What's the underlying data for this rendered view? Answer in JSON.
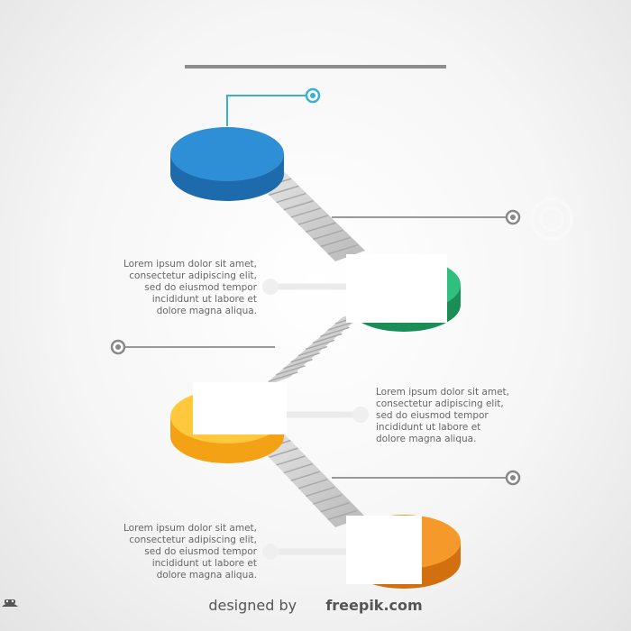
{
  "steps": [
    {
      "color_top": "#2f8fd6",
      "color_side": "#1d6aac",
      "body": ""
    },
    {
      "color_top": "#2fc07f",
      "color_side": "#1b8d56",
      "body": "Lorem ipsum dolor sit amet,\nconsectetur adipiscing elit,\nsed do eiusmod tempor\nincididunt ut labore et\ndolore magna aliqua."
    },
    {
      "color_top": "#ffc83d",
      "color_side": "#f3a215",
      "body": "Lorem ipsum dolor sit amet,\nconsectetur adipiscing elit,\nsed do eiusmod tempor\nincididunt ut labore et\ndolore magna aliqua."
    },
    {
      "color_top": "#f59a2a",
      "color_side": "#d2700f",
      "body": "Lorem ipsum dolor sit amet,\nconsectetur adipiscing elit,\nsed do eiusmod tempor\nincididunt ut labore et\ndolore magna aliqua."
    }
  ],
  "credit": {
    "prefix": "designed by",
    "brand": "freepik.com"
  },
  "colors": {
    "accent": "#3aafd6",
    "connector": "#999999",
    "stairs": "#cfcfcf"
  },
  "icons": [
    "target-icon",
    "hat-icon"
  ]
}
